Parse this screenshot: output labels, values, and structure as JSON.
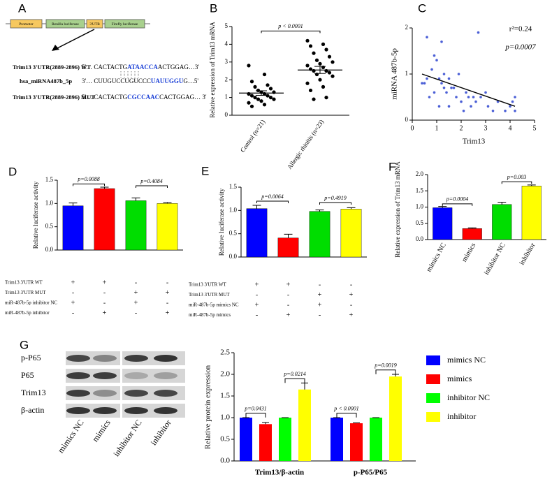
{
  "diagram": {
    "panel": "A",
    "boxes": [
      "Promoter",
      "Renilla luciferase",
      "3'UTR",
      "Firefly luciferase"
    ],
    "rows": [
      {
        "label": "Trim13 3'UTR(2889-2896) WT",
        "seq": [
          "5'… CACTACTG",
          "ATAACCA",
          "ACTGGAG…3'"
        ]
      },
      {
        "label": "hsa_miRNA487b_5p",
        "seq": [
          "3'… CUUGUCCUGUCCC",
          "UAUUGGU",
          "G…5'"
        ]
      },
      {
        "label": "Trim13 3'UTR(2889-2896) MUT",
        "seq": [
          "5'… CACTACTG",
          "CGCCAAC",
          "CACTGGAG… 3'"
        ]
      }
    ]
  },
  "chart_data": [
    {
      "type": "dotplot",
      "panel": "B",
      "ylabel": "Relative expression of Trim13 mRNA",
      "categories": [
        "Control (n=21)",
        "Allergic rhinitis (n=23)"
      ],
      "points": [
        [
          2.8,
          2.3,
          1.9,
          1.7,
          1.6,
          1.5,
          1.4,
          1.3,
          1.3,
          1.2,
          1.2,
          1.1,
          1.1,
          1.0,
          1.0,
          0.9,
          0.9,
          0.8,
          0.7,
          0.6,
          0.5
        ],
        [
          4.2,
          4.0,
          3.9,
          3.7,
          3.5,
          3.3,
          3.1,
          3.0,
          2.9,
          2.8,
          2.7,
          2.6,
          2.5,
          2.5,
          2.4,
          2.3,
          2.2,
          2.0,
          1.8,
          1.6,
          1.4,
          1.0,
          0.9
        ]
      ],
      "means": [
        1.25,
        2.55
      ],
      "errors": [
        0.13,
        0.2
      ],
      "color": "#000000",
      "ylim": [
        0,
        5
      ],
      "yticks": [
        0,
        1,
        2,
        3,
        4,
        5
      ],
      "annotations": [
        "p < 0.0001"
      ]
    },
    {
      "type": "scatter",
      "panel": "C",
      "ylabel": "miRNA 487b-5p",
      "xlabel": "Trim13",
      "x": [
        0.4,
        0.5,
        0.6,
        0.6,
        0.7,
        0.8,
        0.9,
        0.9,
        1.0,
        1.1,
        1.1,
        1.2,
        1.2,
        1.3,
        1.3,
        1.4,
        1.5,
        1.5,
        1.6,
        1.7,
        1.8,
        1.9,
        2.0,
        2.1,
        2.2,
        2.3,
        2.4,
        2.5,
        2.6,
        2.7,
        2.8,
        3.0,
        3.1,
        3.3,
        3.5,
        3.8,
        4.0,
        4.1,
        4.2,
        4.2
      ],
      "values": [
        0.8,
        0.8,
        1.8,
        0.9,
        0.5,
        1.1,
        1.4,
        0.6,
        1.3,
        0.9,
        0.3,
        1.7,
        0.8,
        0.7,
        1.0,
        0.6,
        0.9,
        0.3,
        0.7,
        0.7,
        0.5,
        1.0,
        0.4,
        0.2,
        0.6,
        0.5,
        0.3,
        0.5,
        0.4,
        1.9,
        0.5,
        0.6,
        0.3,
        0.2,
        0.4,
        0.2,
        0.3,
        0.4,
        0.2,
        0.5
      ],
      "color": "#4b5fd6",
      "fit": {
        "x": [
          0.4,
          4.2
        ],
        "y": [
          1.0,
          0.3
        ]
      },
      "xlim": [
        0,
        5
      ],
      "xticks": [
        0,
        1,
        2,
        3,
        4,
        5
      ],
      "ylim": [
        0,
        2
      ],
      "yticks": [
        0,
        1,
        2
      ],
      "annotations": [
        "r²=0.24",
        "p=0.0007"
      ]
    },
    {
      "type": "bar",
      "panel": "D",
      "ylabel": "Relative luciferase activity",
      "values": [
        0.95,
        1.32,
        1.06,
        1.0
      ],
      "errors": [
        0.06,
        0.03,
        0.06,
        0.02
      ],
      "colors": [
        "#0000ff",
        "#ff0000",
        "#00dd00",
        "#ffff00"
      ],
      "ylim": [
        0,
        1.5
      ],
      "yticks": [
        {
          "value": 0,
          "label": "0.0"
        },
        0.5,
        {
          "value": 1,
          "label": "1.0"
        },
        1.5
      ],
      "annotations": [
        "p=0.0088",
        "p=0.4084"
      ],
      "table": [
        {
          "label": "Trim13 3'UTR WT",
          "signs": [
            "+",
            "+",
            "-",
            "-"
          ]
        },
        {
          "label": "Trim13 3'UTR MUT",
          "signs": [
            "-",
            "-",
            "+",
            "+"
          ]
        },
        {
          "label": "miR-487b-5p inhibitor NC",
          "signs": [
            "+",
            "-",
            "+",
            "-"
          ]
        },
        {
          "label": "miR-487b-5p inhibitor",
          "signs": [
            "-",
            "+",
            "-",
            "+"
          ]
        }
      ]
    },
    {
      "type": "bar",
      "panel": "E",
      "ylabel": "Relative luciferase activity",
      "values": [
        1.04,
        0.41,
        0.98,
        1.03
      ],
      "errors": [
        0.07,
        0.08,
        0.03,
        0.03
      ],
      "colors": [
        "#0000ff",
        "#ff0000",
        "#00dd00",
        "#ffff00"
      ],
      "ylim": [
        0,
        1.5
      ],
      "yticks": [
        {
          "value": 0,
          "label": "0.0"
        },
        0.5,
        {
          "value": 1,
          "label": "1.0"
        },
        1.5
      ],
      "annotations": [
        "p=0.0064",
        "p=0.4919"
      ],
      "table": [
        {
          "label": "Trim13 3'UTR WT",
          "signs": [
            "+",
            "+",
            "-",
            "-"
          ]
        },
        {
          "label": "Trim13 3'UTR MUT",
          "signs": [
            "-",
            "-",
            "+",
            "+"
          ]
        },
        {
          "label": "miR-487b-5p mimics NC",
          "signs": [
            "+",
            "-",
            "+",
            "-"
          ]
        },
        {
          "label": "miR-487b-5p mimics",
          "signs": [
            "-",
            "+",
            "-",
            "+"
          ]
        }
      ]
    },
    {
      "type": "bar",
      "panel": "F",
      "ylabel": "Relative expression of Trim13 mRNA",
      "categories": [
        "mimics NC",
        "mimics",
        "inhibitor NC",
        "inhibitor"
      ],
      "values": [
        0.98,
        0.34,
        1.08,
        1.65
      ],
      "errors": [
        0.04,
        0.02,
        0.07,
        0.03
      ],
      "colors": [
        "#0000ff",
        "#ff0000",
        "#00dd00",
        "#ffff00"
      ],
      "ylim": [
        0,
        2
      ],
      "yticks": [
        {
          "value": 0,
          "label": "0.0"
        },
        0.5,
        {
          "value": 1,
          "label": "1.0"
        },
        1.5,
        {
          "value": 2,
          "label": "2.0"
        }
      ],
      "annotations": [
        "p=0.0004",
        "p=0.003"
      ]
    },
    {
      "type": "bar",
      "panel": "G",
      "ylabel": "Relative protein expression",
      "categories": [
        "Trim13/β-actin",
        "p-P65/P65"
      ],
      "series": [
        {
          "name": "mimics NC",
          "color": "#0000ff",
          "values": [
            1.0,
            1.0
          ],
          "errors": [
            0,
            0
          ]
        },
        {
          "name": "mimics",
          "color": "#ff0000",
          "values": [
            0.85,
            0.87
          ],
          "errors": [
            0.04,
            0.01
          ]
        },
        {
          "name": "inhibitor NC",
          "color": "#00ff00",
          "values": [
            1.0,
            1.0
          ],
          "errors": [
            0,
            0
          ]
        },
        {
          "name": "inhibitor",
          "color": "#ffff00",
          "values": [
            1.65,
            1.95
          ],
          "errors": [
            0.15,
            0.05
          ]
        }
      ],
      "ylim": [
        0,
        2.5
      ],
      "yticks": [
        {
          "value": 0,
          "label": "0.0"
        },
        0.5,
        {
          "value": 1,
          "label": "1.0"
        },
        1.5,
        {
          "value": 2,
          "label": "2.0"
        },
        2.5
      ],
      "annotations": [
        "p=0.0431",
        "p=0.0214",
        "p < 0.0001",
        "p=0.0019"
      ],
      "blot_rows": [
        "p-P65",
        "P65",
        "Trim13",
        "β-actin"
      ],
      "blot_lanes": [
        "mimics NC",
        "mimics",
        "inhibitor NC",
        "inhibitor"
      ]
    }
  ]
}
